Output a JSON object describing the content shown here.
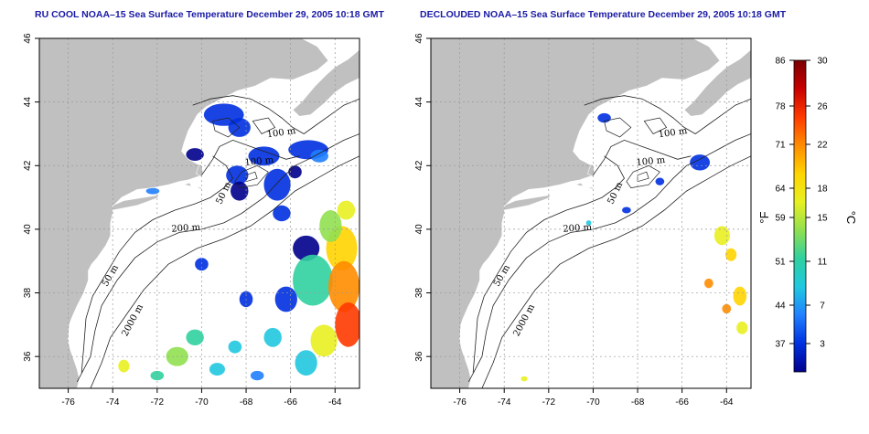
{
  "panels": [
    {
      "title": "RU COOL NOAA–15 Sea Surface Temperature December 29, 2005 10:18 GMT"
    },
    {
      "title": "DECLOUDED NOAA–15 Sea Surface Temperature December 29, 2005 10:18 GMT"
    }
  ],
  "axes": {
    "x_ticks": [
      "-76",
      "-74",
      "-72",
      "-70",
      "-68",
      "-66",
      "-64"
    ],
    "y_ticks": [
      "36",
      "38",
      "40",
      "42",
      "44",
      "46"
    ],
    "lon_range": [
      -77.3,
      -62.9
    ],
    "lat_range": [
      35.0,
      46.0
    ]
  },
  "contour_labels": [
    {
      "text": "100 m",
      "lon": -66.4,
      "lat": 42.95,
      "angle": -8
    },
    {
      "text": "100 m",
      "lon": -67.4,
      "lat": 42.05,
      "angle": -6
    },
    {
      "text": "50 m",
      "lon": -68.9,
      "lat": 41.1,
      "angle": -65
    },
    {
      "text": "200 m",
      "lon": -70.7,
      "lat": 39.95,
      "angle": -4
    },
    {
      "text": "50 m",
      "lon": -74.0,
      "lat": 38.5,
      "angle": -60
    },
    {
      "text": "2000 m",
      "lon": -73.0,
      "lat": 37.1,
      "angle": -62
    }
  ],
  "colorbar": {
    "fahrenheit_ticks": [
      "86",
      "78",
      "71",
      "64",
      "59",
      "51",
      "44",
      "37"
    ],
    "celsius_ticks": [
      "30",
      "26",
      "22",
      "18",
      "15",
      "11",
      "7",
      "3"
    ],
    "fahrenheit_unit": "°F",
    "celsius_unit": "°C",
    "colors": [
      "#7a0000",
      "#c80000",
      "#ff3a00",
      "#ff8c00",
      "#ffd400",
      "#e8f020",
      "#90e050",
      "#30d0a0",
      "#20c8e0",
      "#2080ff",
      "#0030e0",
      "#00008c"
    ]
  },
  "colors": {
    "land": "#c0c0c0",
    "ocean": "#ffffff",
    "grid": "#999999",
    "title": "#1a1aa6"
  }
}
